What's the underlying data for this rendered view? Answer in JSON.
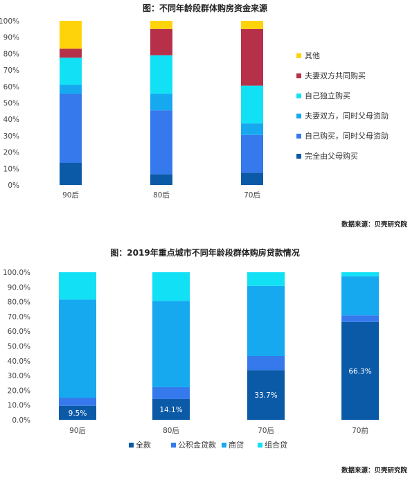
{
  "colors": {
    "full": "#0b5aa7",
    "self_parents": "#3579ec",
    "couple_parents": "#16a9f0",
    "self_indep": "#12e1f5",
    "couple_joint": "#b7304a",
    "other": "#ffd30a"
  },
  "chart_data": [
    {
      "type": "bar",
      "stacked": true,
      "title": "图：不同年龄段群体购房资金来源",
      "source": "数据来源：贝壳研究院",
      "categories": [
        "90后",
        "80后",
        "70后"
      ],
      "ylim": [
        0,
        100
      ],
      "yticks": [
        "0%",
        "10%",
        "20%",
        "30%",
        "40%",
        "50%",
        "60%",
        "70%",
        "80%",
        "90%",
        "100%"
      ],
      "legend_position": "right",
      "series": [
        {
          "name": "完全由父母购买",
          "color": "#0b5aa7",
          "values": [
            13.5,
            6.5,
            7.5
          ]
        },
        {
          "name": "自己购买，同时父母资助",
          "color": "#3579ec",
          "values": [
            42,
            39,
            23
          ]
        },
        {
          "name": "夫妻双方，同时父母资助",
          "color": "#16a9f0",
          "values": [
            5.5,
            10,
            7
          ]
        },
        {
          "name": "自己独立购买",
          "color": "#12e1f5",
          "values": [
            16.5,
            23.5,
            23
          ]
        },
        {
          "name": "夫妻双方共同购买",
          "color": "#b7304a",
          "values": [
            5.5,
            16,
            34.5
          ]
        },
        {
          "name": "其他",
          "color": "#ffd30a",
          "values": [
            17,
            5,
            5
          ]
        }
      ]
    },
    {
      "type": "bar",
      "stacked": true,
      "title": "图：2019年重点城市不同年龄段群体购房贷款情况",
      "source": "数据来源：贝壳研究院",
      "categories": [
        "90后",
        "80后",
        "70后",
        "70前"
      ],
      "ylim": [
        0,
        100
      ],
      "yticks": [
        "0.0%",
        "10.0%",
        "20.0%",
        "30.0%",
        "40.0%",
        "50.0%",
        "60.0%",
        "70.0%",
        "80.0%",
        "90.0%",
        "100.0%"
      ],
      "legend_position": "bottom",
      "series": [
        {
          "name": "全款",
          "color": "#0b5aa7",
          "values": [
            9.5,
            14.1,
            33.7,
            66.3
          ],
          "labels": [
            "9.5%",
            "14.1%",
            "33.7%",
            "66.3%"
          ]
        },
        {
          "name": "公积金贷款",
          "color": "#3579ec",
          "values": [
            5.5,
            8,
            9.5,
            4.5
          ]
        },
        {
          "name": "商贷",
          "color": "#16a9f0",
          "values": [
            66.5,
            58.5,
            47.5,
            26.5
          ]
        },
        {
          "name": "组合贷",
          "color": "#12e1f5",
          "values": [
            18.5,
            19.4,
            9.3,
            2.7
          ]
        }
      ]
    }
  ]
}
